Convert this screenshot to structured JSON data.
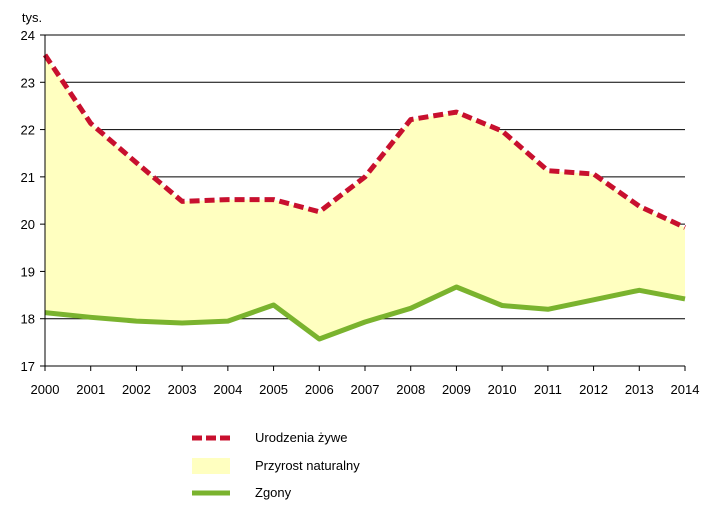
{
  "chart_data": {
    "type": "area",
    "ylabel": "tys.",
    "ylim": [
      17,
      24
    ],
    "yticks": [
      17,
      18,
      19,
      20,
      21,
      22,
      23,
      24
    ],
    "x": [
      "2000",
      "2001",
      "2002",
      "2003",
      "2004",
      "2005",
      "2006",
      "2007",
      "2008",
      "2009",
      "2010",
      "2011",
      "2012",
      "2013",
      "2014"
    ],
    "grid": true,
    "legend_position": "bottom",
    "series": [
      {
        "name": "Urodzenia żywe",
        "style": "dashed-line",
        "color": "#c8102e",
        "values": [
          23.58,
          22.13,
          21.3,
          20.48,
          20.52,
          20.52,
          20.26,
          21.0,
          22.21,
          22.37,
          21.97,
          21.13,
          21.06,
          20.38,
          19.93
        ]
      },
      {
        "name": "Zgony",
        "style": "solid-line",
        "color": "#7ab32e",
        "values": [
          18.13,
          18.03,
          17.95,
          17.91,
          17.95,
          18.29,
          17.57,
          17.93,
          18.22,
          18.67,
          18.28,
          18.2,
          18.4,
          18.6,
          18.42
        ]
      }
    ],
    "area": {
      "name": "Przyrost naturalny",
      "color": "#ffffc0",
      "between": [
        "Urodzenia żywe",
        "Zgony"
      ]
    }
  }
}
